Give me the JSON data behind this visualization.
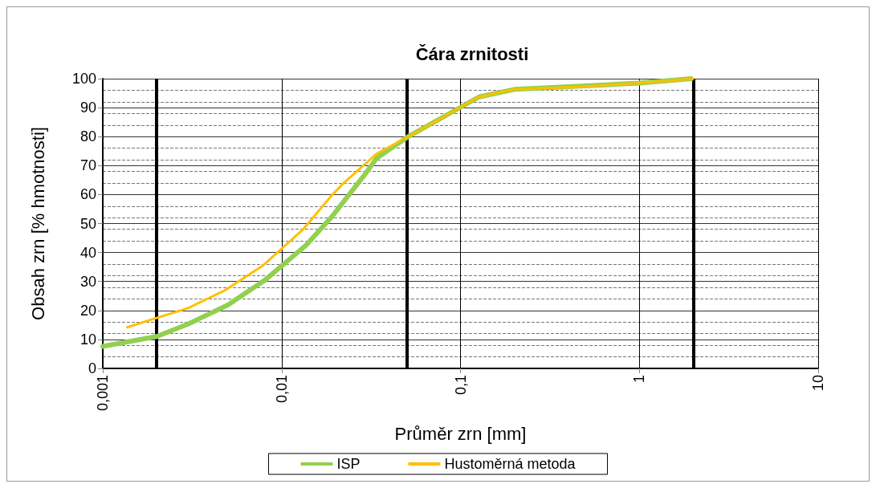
{
  "chart_data": {
    "type": "line",
    "title": "Čára zrnitosti",
    "xlabel": "Průměr zrn [mm]",
    "ylabel": "Obsah zrn [% hmotnosti]",
    "log": "x",
    "grid": true,
    "legend": "bottom",
    "marker": "none",
    "line_style": "solid",
    "xlim": [
      0.001,
      10
    ],
    "xticks": [
      {
        "value": 0.001,
        "label": "0,001"
      },
      {
        "value": 0.01,
        "label": "0,01"
      },
      {
        "value": 0.1,
        "label": "0,1"
      },
      {
        "value": 1,
        "label": "1"
      },
      {
        "value": 10,
        "label": "10"
      }
    ],
    "ylim": [
      0,
      100
    ],
    "yticks": [
      0,
      10,
      20,
      30,
      40,
      50,
      60,
      70,
      80,
      90,
      100
    ],
    "ref_lines": [
      {
        "axis": "x",
        "value": 0.002,
        "label": null,
        "color": "#000000"
      },
      {
        "axis": "x",
        "value": 0.05,
        "label": null,
        "color": "#000000"
      },
      {
        "axis": "x",
        "value": 2,
        "label": null,
        "color": "#000000"
      }
    ],
    "series": [
      {
        "name": "ISP",
        "color": "#92d050",
        "x": [
          0.001,
          0.002,
          0.003,
          0.005,
          0.008,
          0.0137,
          0.019,
          0.0295,
          0.034,
          0.051,
          0.127,
          0.2,
          0.5,
          1,
          1.95
        ],
        "values": [
          7.6,
          11,
          15.3,
          21.9,
          30.3,
          42.5,
          52.2,
          67.3,
          72.6,
          80,
          93.7,
          96.3,
          97.5,
          98.5,
          100
        ]
      },
      {
        "name": "Hustoměrná metoda",
        "color": "#ffc000",
        "x": [
          0.00137,
          0.002,
          0.003,
          0.0048,
          0.0079,
          0.0131,
          0.019,
          0.0219,
          0.034,
          0.051,
          0.127,
          0.2,
          0.5,
          1,
          2
        ],
        "values": [
          14.2,
          17.4,
          20.8,
          26.9,
          35.6,
          47.8,
          59.6,
          63.6,
          74.1,
          80,
          93.7,
          96.3,
          97.3,
          98.5,
          100
        ]
      }
    ]
  }
}
